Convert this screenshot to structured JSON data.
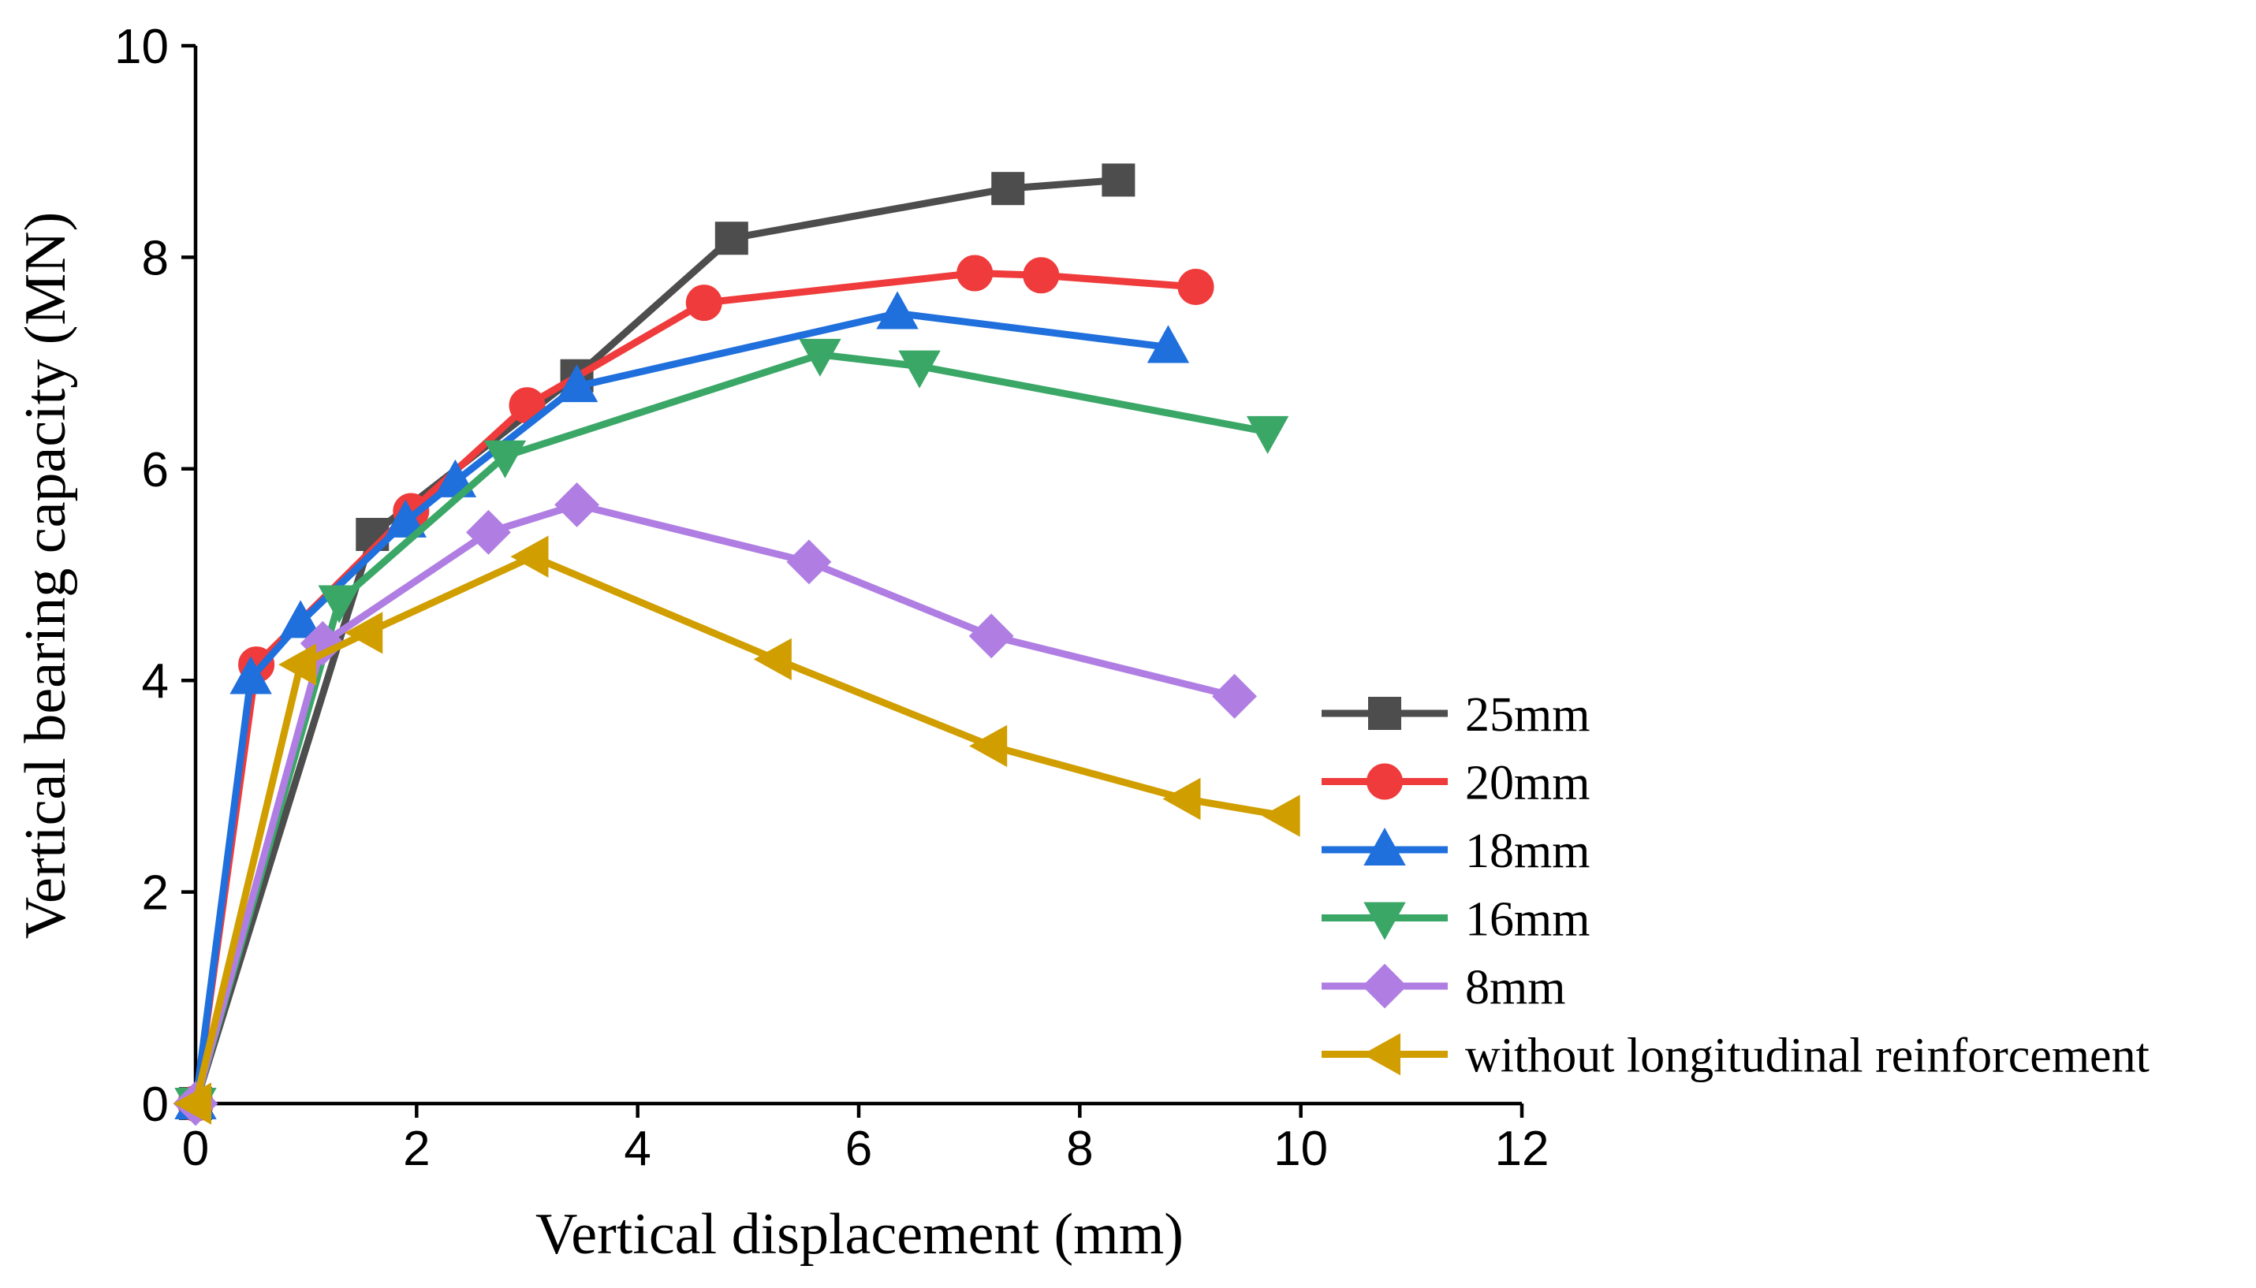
{
  "chart_data": {
    "type": "line",
    "title": "",
    "xlabel": "Vertical displacement (mm)",
    "ylabel": "Vertical bearing capacity (MN)",
    "xlim": [
      0,
      12
    ],
    "ylim": [
      0,
      10
    ],
    "xticks": [
      0,
      2,
      4,
      6,
      8,
      10,
      12
    ],
    "yticks": [
      0,
      2,
      4,
      6,
      8,
      10
    ],
    "grid": false,
    "legend_position": "right",
    "series": [
      {
        "name": "25mm",
        "color": "#4d4d4d",
        "marker": "square",
        "points": [
          [
            0,
            0
          ],
          [
            1.6,
            5.38
          ],
          [
            3.45,
            6.88
          ],
          [
            4.85,
            8.18
          ],
          [
            7.35,
            8.65
          ],
          [
            8.35,
            8.73
          ]
        ]
      },
      {
        "name": "20mm",
        "color": "#ef3b3b",
        "marker": "circle",
        "points": [
          [
            0,
            0
          ],
          [
            0.55,
            4.15
          ],
          [
            1.95,
            5.6
          ],
          [
            3,
            6.6
          ],
          [
            4.6,
            7.57
          ],
          [
            7.05,
            7.85
          ],
          [
            7.65,
            7.83
          ],
          [
            9.05,
            7.72
          ]
        ]
      },
      {
        "name": "18mm",
        "color": "#1f6fdd",
        "marker": "triangle-up",
        "points": [
          [
            0,
            0
          ],
          [
            0.5,
            4.02
          ],
          [
            0.95,
            4.55
          ],
          [
            1.9,
            5.5
          ],
          [
            2.35,
            5.88
          ],
          [
            3.45,
            6.78
          ],
          [
            6.35,
            7.47
          ],
          [
            8.8,
            7.15
          ]
        ]
      },
      {
        "name": "16mm",
        "color": "#3aa767",
        "marker": "triangle-down",
        "points": [
          [
            0,
            0
          ],
          [
            1.3,
            4.75
          ],
          [
            2.8,
            6.12
          ],
          [
            5.65,
            7.08
          ],
          [
            6.55,
            6.97
          ],
          [
            9.7,
            6.35
          ]
        ]
      },
      {
        "name": "8mm",
        "color": "#b07ee3",
        "marker": "diamond",
        "points": [
          [
            0,
            0
          ],
          [
            1.15,
            4.35
          ],
          [
            2.65,
            5.4
          ],
          [
            3.45,
            5.66
          ],
          [
            5.55,
            5.12
          ],
          [
            7.2,
            4.42
          ],
          [
            9.4,
            3.85
          ]
        ]
      },
      {
        "name": "without longitudinal reinforcement",
        "color": "#d19e00",
        "marker": "triangle-left",
        "points": [
          [
            0,
            0
          ],
          [
            0.95,
            4.15
          ],
          [
            1.55,
            4.45
          ],
          [
            3.05,
            5.17
          ],
          [
            5.25,
            4.2
          ],
          [
            7.2,
            3.38
          ],
          [
            8.95,
            2.88
          ],
          [
            9.85,
            2.72
          ]
        ]
      }
    ]
  }
}
